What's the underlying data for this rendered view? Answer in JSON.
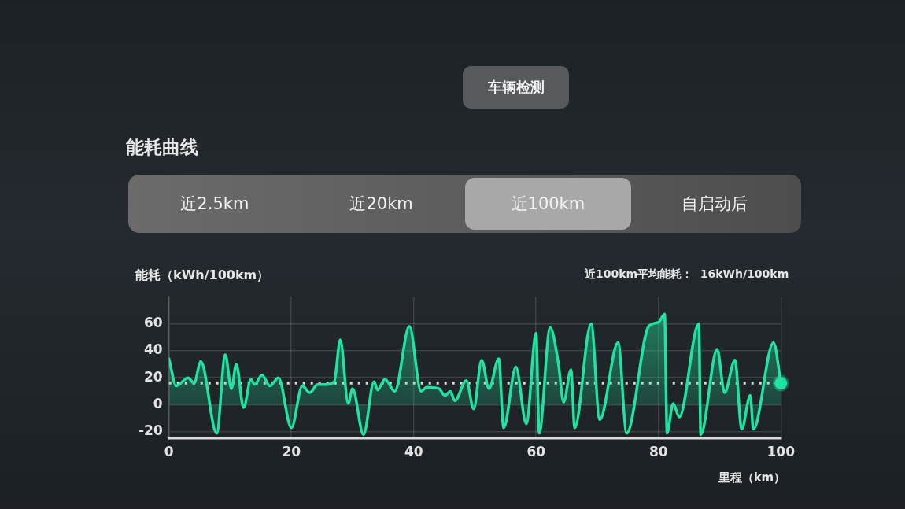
{
  "chart_data": {
    "type": "area",
    "title": "能耗曲线",
    "xlabel": "里程（km）",
    "ylabel": "能耗（kWh/100km）",
    "annotations": [
      "车辆检测",
      "近2.5km",
      "近20km",
      "近100km",
      "自启动后",
      "近100km平均能耗：  16kWh/100km"
    ],
    "x": [
      0,
      1.2,
      3.1,
      4.1,
      5.2,
      7.8,
      9.2,
      10.2,
      11,
      12.2,
      13.4,
      14,
      15.2,
      16.5,
      17.9,
      20,
      21.8,
      23,
      24.3,
      25.5,
      27,
      28,
      29.3,
      30,
      31.8,
      33.5,
      34.1,
      35.3,
      36.9,
      39.3,
      41.2,
      42.1,
      44.1,
      45.1,
      46,
      46.7,
      48.6,
      49.8,
      51.1,
      52.3,
      53.9,
      54.7,
      56.7,
      58.4,
      60,
      60.5,
      62.3,
      63.6,
      64.5,
      65.7,
      66.3,
      69,
      70.4,
      73.4,
      74.8,
      78.4,
      80,
      81,
      81.4,
      82.4,
      83.4,
      86.6,
      86.9,
      89.6,
      90.8,
      92.5,
      93.6,
      95,
      95.5,
      98.8,
      100
    ],
    "series": [
      {
        "color": "#1fe3a0",
        "values": [
          34,
          14,
          20,
          16,
          32,
          -21,
          37,
          12,
          30,
          -2,
          19,
          15,
          22,
          14,
          20,
          -17,
          14,
          9,
          15,
          15,
          17,
          48,
          1,
          12,
          -22,
          17,
          11,
          19,
          10,
          58,
          10,
          13,
          12,
          7,
          10,
          3,
          18,
          -3,
          33,
          12,
          34,
          -17,
          28,
          -14,
          53,
          -21,
          57,
          32,
          2,
          26,
          -17,
          60,
          -11,
          46,
          -21,
          58,
          61,
          67,
          -21,
          1,
          -9,
          60,
          -22,
          41,
          9,
          33,
          -18,
          7,
          -18,
          46,
          16
        ]
      },
      {
        "type": "scatter",
        "x": [
          100
        ],
        "values": [
          16
        ],
        "color": "#1fe3a0"
      }
    ],
    "xlim": [
      0,
      100
    ],
    "xticks": [
      0,
      20,
      40,
      60,
      80,
      100
    ],
    "ylim": [
      -25,
      80
    ],
    "yticks": [
      -20,
      0,
      20,
      40,
      60
    ],
    "grid": true,
    "ref_lines": [
      {
        "axis": "y",
        "value": 16,
        "color": "#d9d9d9",
        "line_style": "dotted"
      }
    ]
  }
}
